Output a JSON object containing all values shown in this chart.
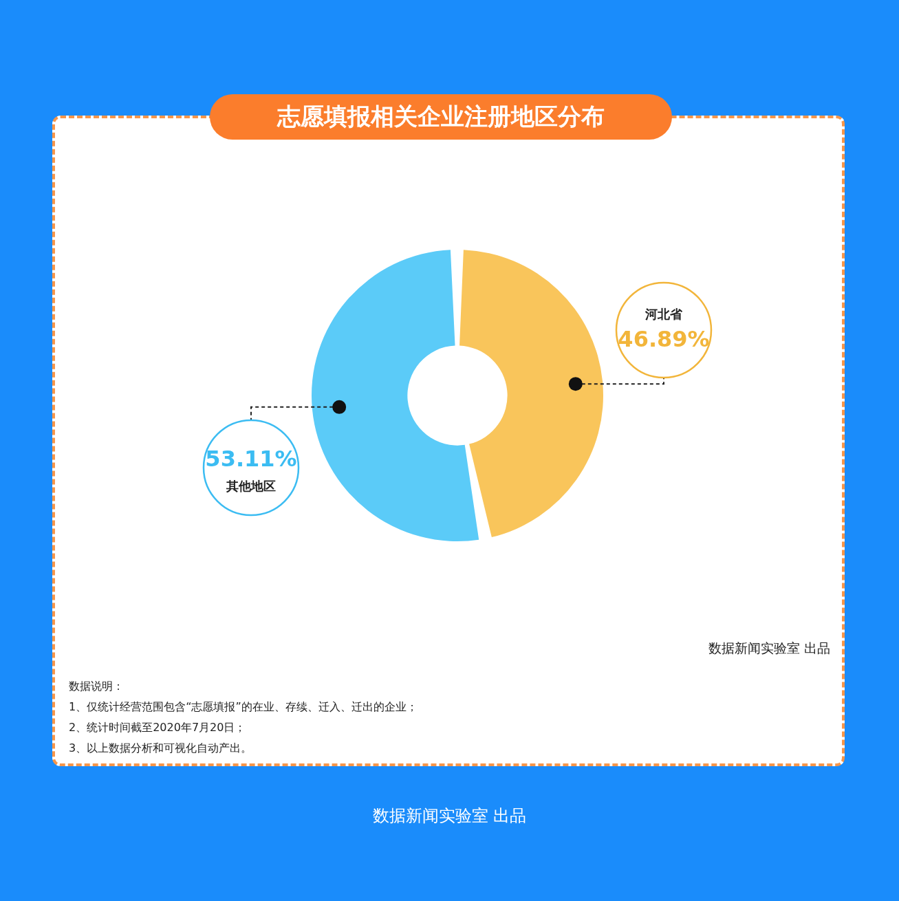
{
  "chart_data": {
    "type": "donut",
    "title": "志愿填报相关企业注册地区分布",
    "categories": [
      "河北省",
      "其他地区"
    ],
    "values": [
      46.89,
      53.11
    ],
    "colors": [
      "#f9c55b",
      "#5bcbf8"
    ],
    "value_labels": [
      "46.89%",
      "53.11%"
    ],
    "legend": false,
    "annotations": [
      "数据说明：",
      "1、仅统计经营范围包含“志愿填报”的在业、存续、迁入、迁出的企业；",
      "2、统计时间截至2020年7月20日；",
      "3、以上数据分析和可视化自动产出。",
      "数据新闻实验室 出品",
      "数据新闻实验室 出品"
    ]
  }
}
